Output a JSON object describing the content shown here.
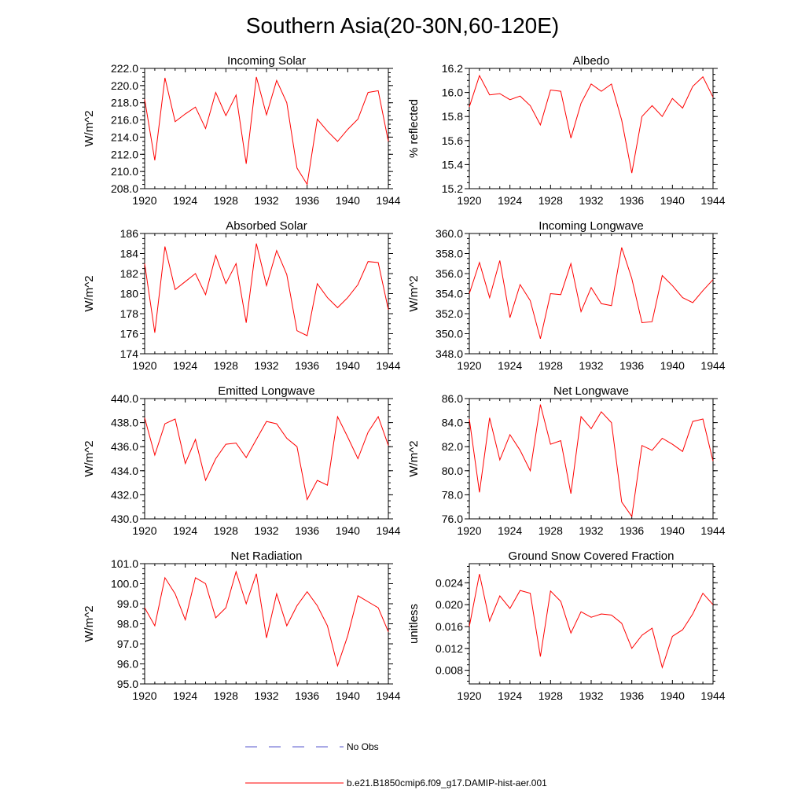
{
  "title": "Southern Asia(20-30N,60-120E)",
  "legend": {
    "placement": "bottom-center",
    "entries": [
      {
        "label": "No Obs",
        "color": "#5555cc",
        "style": "dashed"
      },
      {
        "label": "b.e21.B1850cmip6.f09_g17.DAMIP-hist-aer.001",
        "color": "#ff0000",
        "style": "solid"
      }
    ]
  },
  "chart_data": [
    {
      "type": "line",
      "title": "Incoming Solar",
      "ylabel": "W/m^2",
      "xlim": [
        1920,
        1944
      ],
      "xticks": [
        "1920",
        "1924",
        "1928",
        "1932",
        "1936",
        "1940",
        "1944"
      ],
      "ylim": [
        208.0,
        222.0
      ],
      "yticks": [
        "208.0",
        "210.0",
        "212.0",
        "214.0",
        "216.0",
        "218.0",
        "220.0",
        "222.0"
      ],
      "grid": false,
      "series": [
        {
          "color": "#ff0000",
          "x": [
            1920,
            1921,
            1922,
            1923,
            1924,
            1925,
            1926,
            1927,
            1928,
            1929,
            1930,
            1931,
            1932,
            1933,
            1934,
            1935,
            1936,
            1937,
            1938,
            1939,
            1940,
            1941,
            1942,
            1943,
            1944
          ],
          "values": [
            218.4,
            211.3,
            220.9,
            215.8,
            216.7,
            217.5,
            215.0,
            219.2,
            216.5,
            218.9,
            210.9,
            221.0,
            216.6,
            220.6,
            218.0,
            210.4,
            208.5,
            216.1,
            214.7,
            213.5,
            214.9,
            216.1,
            219.2,
            219.4,
            213.5
          ]
        }
      ]
    },
    {
      "type": "line",
      "title": "Albedo",
      "ylabel": "% reflected",
      "xlim": [
        1920,
        1944
      ],
      "xticks": [
        "1920",
        "1924",
        "1928",
        "1932",
        "1936",
        "1940",
        "1944"
      ],
      "ylim": [
        15.2,
        16.2
      ],
      "yticks": [
        "15.2",
        "15.4",
        "15.6",
        "15.8",
        "16.0",
        "16.2"
      ],
      "grid": false,
      "series": [
        {
          "color": "#ff0000",
          "x": [
            1920,
            1921,
            1922,
            1923,
            1924,
            1925,
            1926,
            1927,
            1928,
            1929,
            1930,
            1931,
            1932,
            1933,
            1934,
            1935,
            1936,
            1937,
            1938,
            1939,
            1940,
            1941,
            1942,
            1943,
            1944
          ],
          "values": [
            15.88,
            16.14,
            15.98,
            15.99,
            15.94,
            15.97,
            15.89,
            15.73,
            16.02,
            16.01,
            15.62,
            15.91,
            16.07,
            16.01,
            16.07,
            15.77,
            15.33,
            15.8,
            15.89,
            15.8,
            15.95,
            15.87,
            16.05,
            16.13,
            15.96
          ]
        }
      ]
    },
    {
      "type": "line",
      "title": "Absorbed Solar",
      "ylabel": "W/m^2",
      "xlim": [
        1920,
        1944
      ],
      "xticks": [
        "1920",
        "1924",
        "1928",
        "1932",
        "1936",
        "1940",
        "1944"
      ],
      "ylim": [
        174,
        186
      ],
      "yticks": [
        "174",
        "176",
        "178",
        "180",
        "182",
        "184",
        "186"
      ],
      "grid": false,
      "series": [
        {
          "color": "#ff0000",
          "x": [
            1920,
            1921,
            1922,
            1923,
            1924,
            1925,
            1926,
            1927,
            1928,
            1929,
            1930,
            1931,
            1932,
            1933,
            1934,
            1935,
            1936,
            1937,
            1938,
            1939,
            1940,
            1941,
            1942,
            1943,
            1944
          ],
          "values": [
            183.0,
            176.1,
            184.7,
            180.4,
            181.2,
            182.0,
            179.9,
            183.8,
            181.0,
            183.0,
            177.1,
            185.0,
            180.8,
            184.3,
            181.9,
            176.3,
            175.8,
            181.0,
            179.6,
            178.6,
            179.6,
            180.9,
            183.2,
            183.1,
            178.4
          ]
        }
      ]
    },
    {
      "type": "line",
      "title": "Incoming Longwave",
      "ylabel": "W/m^2",
      "xlim": [
        1920,
        1944
      ],
      "xticks": [
        "1920",
        "1924",
        "1928",
        "1932",
        "1936",
        "1940",
        "1944"
      ],
      "ylim": [
        348.0,
        360.0
      ],
      "yticks": [
        "348.0",
        "350.0",
        "352.0",
        "354.0",
        "356.0",
        "358.0",
        "360.0"
      ],
      "grid": false,
      "series": [
        {
          "color": "#ff0000",
          "x": [
            1920,
            1921,
            1922,
            1923,
            1924,
            1925,
            1926,
            1927,
            1928,
            1929,
            1930,
            1931,
            1932,
            1933,
            1934,
            1935,
            1936,
            1937,
            1938,
            1939,
            1940,
            1941,
            1942,
            1943,
            1944
          ],
          "values": [
            354.0,
            357.1,
            353.6,
            357.3,
            351.6,
            354.9,
            353.3,
            349.5,
            354.0,
            353.9,
            357.0,
            352.2,
            354.6,
            353.0,
            352.8,
            358.6,
            355.5,
            351.1,
            351.2,
            355.8,
            354.8,
            353.6,
            353.1,
            354.3,
            355.4
          ]
        }
      ]
    },
    {
      "type": "line",
      "title": "Emitted Longwave",
      "ylabel": "W/m^2",
      "xlim": [
        1920,
        1944
      ],
      "xticks": [
        "1920",
        "1924",
        "1928",
        "1932",
        "1936",
        "1940",
        "1944"
      ],
      "ylim": [
        430.0,
        440.0
      ],
      "yticks": [
        "430.0",
        "432.0",
        "434.0",
        "436.0",
        "438.0",
        "440.0"
      ],
      "grid": false,
      "series": [
        {
          "color": "#ff0000",
          "x": [
            1920,
            1921,
            1922,
            1923,
            1924,
            1925,
            1926,
            1927,
            1928,
            1929,
            1930,
            1931,
            1932,
            1933,
            1934,
            1935,
            1936,
            1937,
            1938,
            1939,
            1940,
            1941,
            1942,
            1943,
            1944
          ],
          "values": [
            438.4,
            435.3,
            437.9,
            438.3,
            434.6,
            436.6,
            433.2,
            435.0,
            436.2,
            436.3,
            435.1,
            436.6,
            438.1,
            437.9,
            436.7,
            436.0,
            431.6,
            433.2,
            432.8,
            438.5,
            436.8,
            435.0,
            437.2,
            438.5,
            436.1
          ]
        }
      ]
    },
    {
      "type": "line",
      "title": "Net Longwave",
      "ylabel": "W/m^2",
      "xlim": [
        1920,
        1944
      ],
      "xticks": [
        "1920",
        "1924",
        "1928",
        "1932",
        "1936",
        "1940",
        "1944"
      ],
      "ylim": [
        76.0,
        86.0
      ],
      "yticks": [
        "76.0",
        "78.0",
        "80.0",
        "82.0",
        "84.0",
        "86.0"
      ],
      "grid": false,
      "series": [
        {
          "color": "#ff0000",
          "x": [
            1920,
            1921,
            1922,
            1923,
            1924,
            1925,
            1926,
            1927,
            1928,
            1929,
            1930,
            1931,
            1932,
            1933,
            1934,
            1935,
            1936,
            1937,
            1938,
            1939,
            1940,
            1941,
            1942,
            1943,
            1944
          ],
          "values": [
            84.3,
            78.2,
            84.4,
            80.9,
            83.0,
            81.7,
            80.0,
            85.5,
            82.2,
            82.5,
            78.1,
            84.5,
            83.5,
            84.9,
            84.0,
            77.4,
            76.2,
            82.1,
            81.7,
            82.7,
            82.2,
            81.6,
            84.1,
            84.3,
            80.8
          ]
        }
      ]
    },
    {
      "type": "line",
      "title": "Net Radiation",
      "ylabel": "W/m^2",
      "xlim": [
        1920,
        1944
      ],
      "xticks": [
        "1920",
        "1924",
        "1928",
        "1932",
        "1936",
        "1940",
        "1944"
      ],
      "ylim": [
        95.0,
        101.0
      ],
      "yticks": [
        "95.0",
        "96.0",
        "97.0",
        "98.0",
        "99.0",
        "100.0",
        "101.0"
      ],
      "grid": false,
      "series": [
        {
          "color": "#ff0000",
          "x": [
            1920,
            1921,
            1922,
            1923,
            1924,
            1925,
            1926,
            1927,
            1928,
            1929,
            1930,
            1931,
            1932,
            1933,
            1934,
            1935,
            1936,
            1937,
            1938,
            1939,
            1940,
            1941,
            1942,
            1943,
            1944
          ],
          "values": [
            98.8,
            97.9,
            100.3,
            99.5,
            98.2,
            100.3,
            100.0,
            98.3,
            98.8,
            100.6,
            99.0,
            100.5,
            97.3,
            99.5,
            97.9,
            98.9,
            99.6,
            98.9,
            97.9,
            95.9,
            97.4,
            99.4,
            99.1,
            98.8,
            97.6
          ]
        }
      ]
    },
    {
      "type": "line",
      "title": "Ground Snow Covered Fraction",
      "ylabel": "unitless",
      "xlim": [
        1920,
        1944
      ],
      "xticks": [
        "1920",
        "1924",
        "1928",
        "1932",
        "1936",
        "1940",
        "1944"
      ],
      "ylim": [
        0.0055,
        0.0275
      ],
      "yticks": [
        "0.008",
        "0.012",
        "0.016",
        "0.020",
        "0.024"
      ],
      "grid": false,
      "series": [
        {
          "color": "#ff0000",
          "x": [
            1920,
            1921,
            1922,
            1923,
            1924,
            1925,
            1926,
            1927,
            1928,
            1929,
            1930,
            1931,
            1932,
            1933,
            1934,
            1935,
            1936,
            1937,
            1938,
            1939,
            1940,
            1941,
            1942,
            1943,
            1944
          ],
          "values": [
            0.016,
            0.0256,
            0.017,
            0.0216,
            0.0193,
            0.0226,
            0.0221,
            0.0105,
            0.0225,
            0.0206,
            0.0148,
            0.0187,
            0.0177,
            0.0183,
            0.0181,
            0.0166,
            0.012,
            0.0144,
            0.0157,
            0.0085,
            0.0142,
            0.0154,
            0.0183,
            0.0221,
            0.02
          ]
        }
      ]
    }
  ]
}
